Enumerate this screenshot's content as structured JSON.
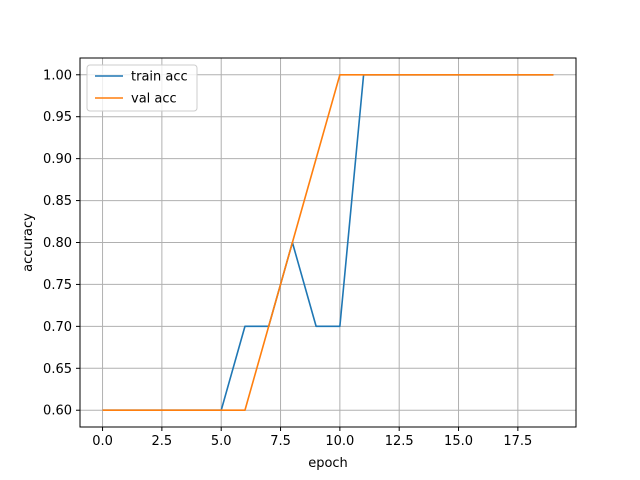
{
  "chart_data": {
    "type": "line",
    "title": "",
    "xlabel": "epoch",
    "ylabel": "accuracy",
    "xlim": [
      -0.95,
      19.95
    ],
    "ylim": [
      0.58,
      1.02
    ],
    "x_ticks": [
      0.0,
      2.5,
      5.0,
      7.5,
      10.0,
      12.5,
      15.0,
      17.5
    ],
    "x_tick_labels": [
      "0.0",
      "2.5",
      "5.0",
      "7.5",
      "10.0",
      "12.5",
      "15.0",
      "17.5"
    ],
    "y_ticks": [
      0.6,
      0.65,
      0.7,
      0.75,
      0.8,
      0.85,
      0.9,
      0.95,
      1.0
    ],
    "y_tick_labels": [
      "0.60",
      "0.65",
      "0.70",
      "0.75",
      "0.80",
      "0.85",
      "0.90",
      "0.95",
      "1.00"
    ],
    "grid": true,
    "legend_position": "top-left",
    "x": [
      0,
      1,
      2,
      3,
      4,
      5,
      6,
      7,
      8,
      9,
      10,
      11,
      12,
      13,
      14,
      15,
      16,
      17,
      18,
      19
    ],
    "series": [
      {
        "name": "train acc",
        "color": "#1f77b4",
        "values": [
          0.6,
          0.6,
          0.6,
          0.6,
          0.6,
          0.6,
          0.7,
          0.7,
          0.8,
          0.7,
          0.7,
          1.0,
          1.0,
          1.0,
          1.0,
          1.0,
          1.0,
          1.0,
          1.0,
          1.0
        ]
      },
      {
        "name": "val acc",
        "color": "#ff7f0e",
        "values": [
          0.6,
          0.6,
          0.6,
          0.6,
          0.6,
          0.6,
          0.6,
          0.7,
          0.8,
          0.9,
          1.0,
          1.0,
          1.0,
          1.0,
          1.0,
          1.0,
          1.0,
          1.0,
          1.0,
          1.0
        ]
      }
    ]
  }
}
